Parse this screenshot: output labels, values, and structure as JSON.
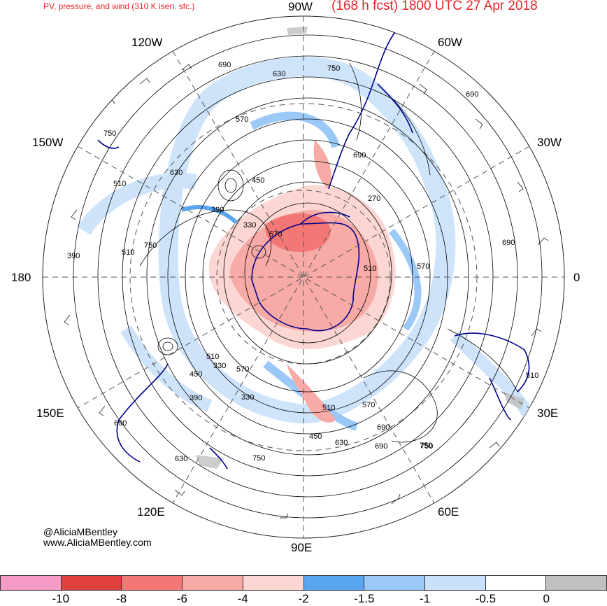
{
  "header": {
    "product": "PV, pressure, and wind (310 K isen. sfc.)",
    "forecast": "(168 h fcst) 1800 UTC 27 Apr 2018"
  },
  "longitude_labels": {
    "north": "90W",
    "south": "90E",
    "west": "180",
    "east": "0",
    "upper_left_outer": "120W",
    "upper_left_mid": "150W",
    "upper_right_outer": "60W",
    "upper_right_mid": "30W",
    "lower_left_mid": "150E",
    "lower_left_outer": "120E",
    "lower_right_mid": "30E",
    "lower_right_outer": "60E"
  },
  "pressure_contour_labels": [
    "690",
    "630",
    "750",
    "570",
    "750",
    "690",
    "630",
    "510",
    "450",
    "390",
    "330",
    "570",
    "510",
    "750",
    "390",
    "270",
    "510",
    "570",
    "690",
    "690",
    "750",
    "510",
    "450",
    "330",
    "570",
    "390",
    "330",
    "510",
    "570",
    "450",
    "630",
    "690",
    "750",
    "630",
    "690",
    "750",
    "690",
    "510"
  ],
  "credits": {
    "handle": "@AliciaMBentley",
    "website": "www.AliciaMBentley.com"
  },
  "colorbar": {
    "colors": [
      "#f59bc6",
      "#e0413f",
      "#f27775",
      "#f7aaa6",
      "#fbd6d2",
      "#5aa5ef",
      "#9ac8f7",
      "#c9e1fa",
      "#ffffff",
      "#c0c0c0"
    ],
    "ticks": [
      "-10",
      "-8",
      "-6",
      "-4",
      "-2",
      "-1.5",
      "-1",
      "-0.5",
      "0"
    ]
  },
  "colors": {
    "title": "#e8232a",
    "coastline": "#00008b",
    "contour": "#000000",
    "grid": "#555555"
  }
}
